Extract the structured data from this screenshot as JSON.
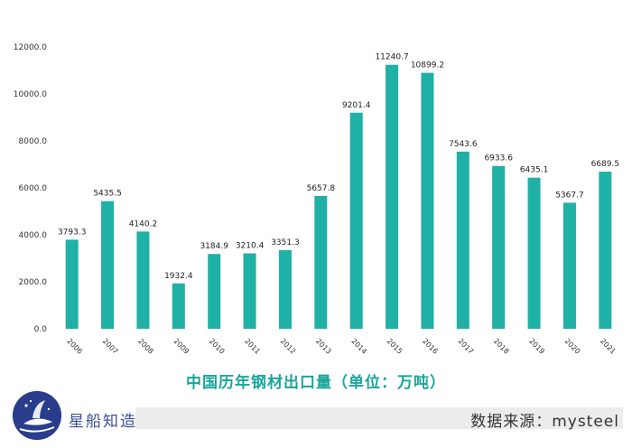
{
  "chart_data": {
    "type": "bar",
    "title": "中国历年钢材出口量（单位：万吨）",
    "categories": [
      "2006",
      "2007",
      "2008",
      "2009",
      "2010",
      "2011",
      "2012",
      "2013",
      "2014",
      "2015",
      "2016",
      "2017",
      "2018",
      "2019",
      "2020",
      "2021"
    ],
    "values": [
      3793.3,
      5435.5,
      4140.2,
      1932.4,
      3184.9,
      3210.4,
      3351.3,
      5657.8,
      9201.4,
      11240.7,
      10899.2,
      7543.6,
      6933.6,
      6435.1,
      5367.7,
      6689.5
    ],
    "value_labels": [
      "3793.3",
      "5435.5",
      "4140.2",
      "1932.4",
      "3184.9",
      "3210.4",
      "3351.3",
      "5657.8",
      "9201.4",
      "11240.7",
      "10899.2",
      "7543.6",
      "6933.6",
      "6435.1",
      "5367.7",
      "6689.5"
    ],
    "y_ticks": [
      "0.0",
      "2000.0",
      "4000.0",
      "6000.0",
      "8000.0",
      "10000.0",
      "12000.0"
    ],
    "ylim": [
      0,
      12000
    ],
    "xlabel": "",
    "ylabel": "",
    "grid": false,
    "bar_color": "#1fb0a6"
  },
  "brand": "星船知造",
  "source": "数据来源：mysteel"
}
